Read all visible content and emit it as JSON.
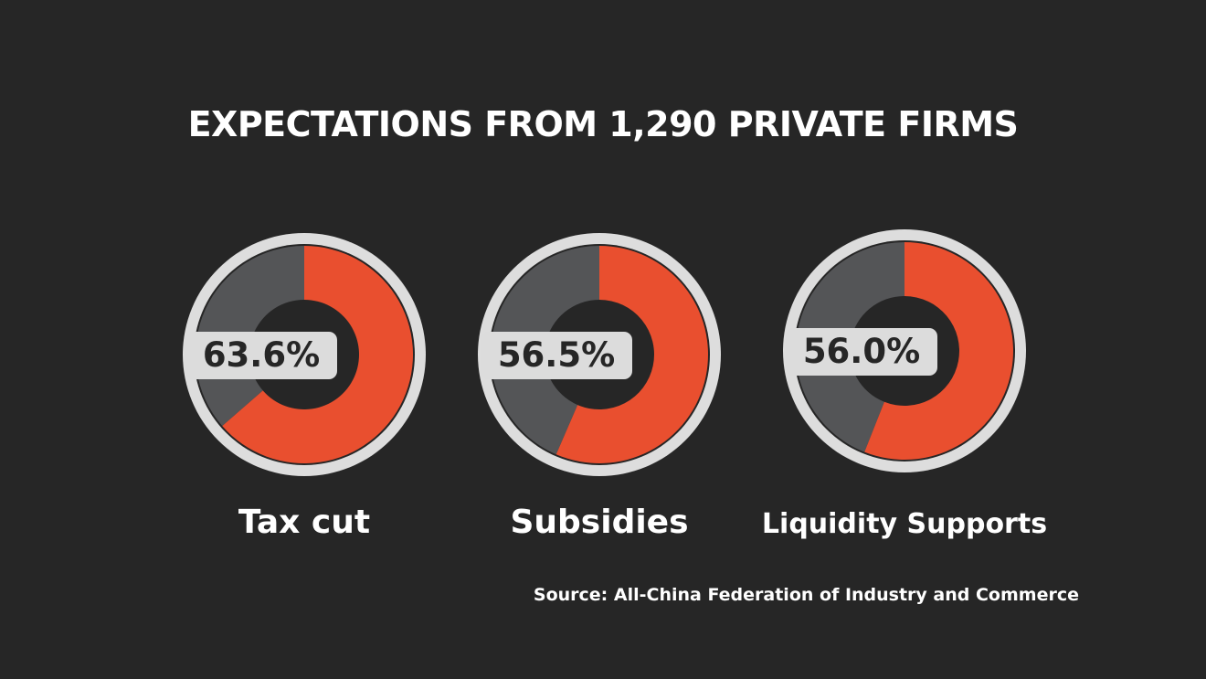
{
  "title": "EXPECTATIONS FROM 1,290 PRIVATE FIRMS",
  "source": "Source: All-China Federation of Industry and Commerce",
  "colors": {
    "background": "#262626",
    "highlight": "#e94f2f",
    "remainder": "#545557",
    "ring": "#dddddd",
    "inner": "#262626",
    "label_box": "#dcdcdc",
    "label_text": "#262626",
    "text": "#ffffff"
  },
  "chart_data": {
    "type": "pie",
    "variant": "donut",
    "unit": "%",
    "categories": [
      "Tax cut",
      "Subsidies",
      "Liquidity Supports"
    ],
    "values": [
      63.6,
      56.5,
      56.0
    ],
    "value_labels": [
      "63.6%",
      "56.5%",
      "56.0%"
    ]
  }
}
